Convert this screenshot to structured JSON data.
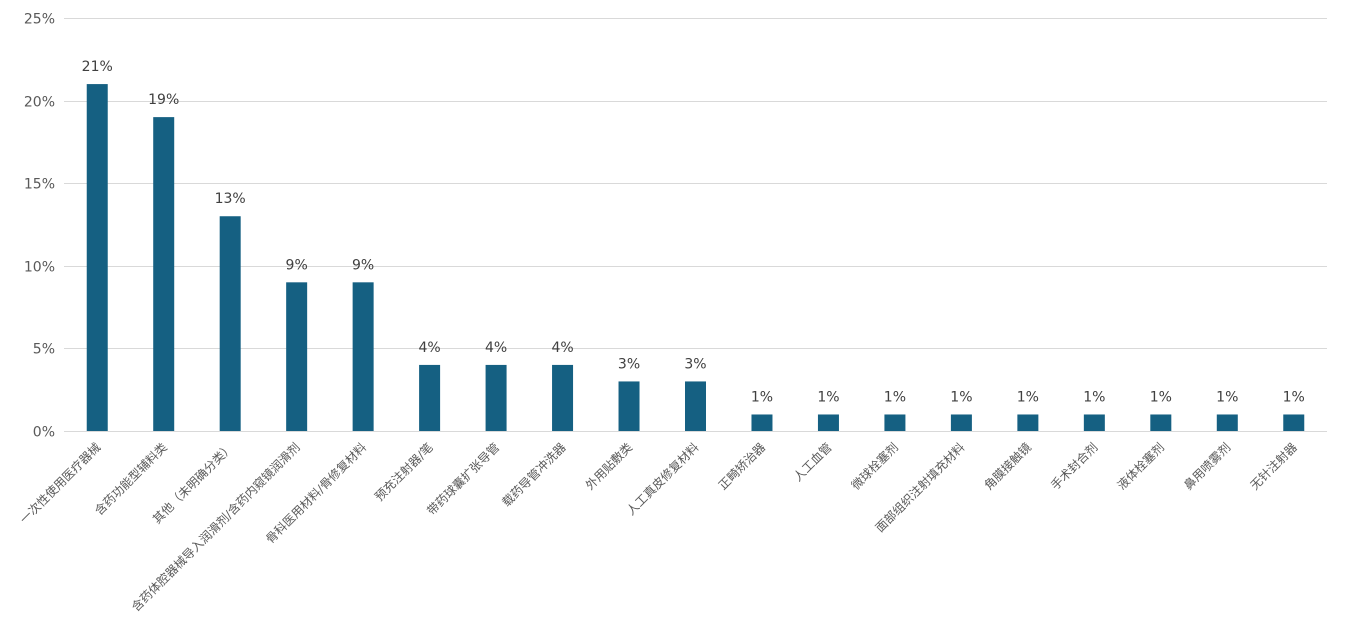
{
  "chart_data": {
    "type": "bar",
    "categories": [
      "一次性使用医疗器械",
      "含药功能型辅料类",
      "其他（未明确分类）",
      "含药体腔器械导入润滑剂/含药内窥镜润滑剂",
      "骨科医用材料/骨修复材料",
      "预充注射器/笔",
      "带药球囊扩张导管",
      "载药导管冲洗器",
      "外用贴敷类",
      "人工真皮修复材料",
      "正畸矫治器",
      "人工血管",
      "微球栓塞剂",
      "面部组织注射填充材料",
      "角膜接触镜",
      "手术封合剂",
      "液体栓塞剂",
      "鼻用喷雾剂",
      "无针注射器"
    ],
    "values": [
      21,
      19,
      13,
      9,
      9,
      4,
      4,
      4,
      3,
      3,
      1,
      1,
      1,
      1,
      1,
      1,
      1,
      1,
      1
    ],
    "data_labels": [
      "21%",
      "19%",
      "13%",
      "9%",
      "9%",
      "4%",
      "4%",
      "4%",
      "3%",
      "3%",
      "1%",
      "1%",
      "1%",
      "1%",
      "1%",
      "1%",
      "1%",
      "1%",
      "1%"
    ],
    "yticks": [
      0,
      5,
      10,
      15,
      20,
      25
    ],
    "ytick_labels": [
      "0%",
      "5%",
      "10%",
      "15%",
      "20%",
      "25%"
    ],
    "ylim": [
      0,
      25
    ],
    "grid": true,
    "bar_color": "#156082",
    "title": "",
    "xlabel": "",
    "ylabel": ""
  }
}
